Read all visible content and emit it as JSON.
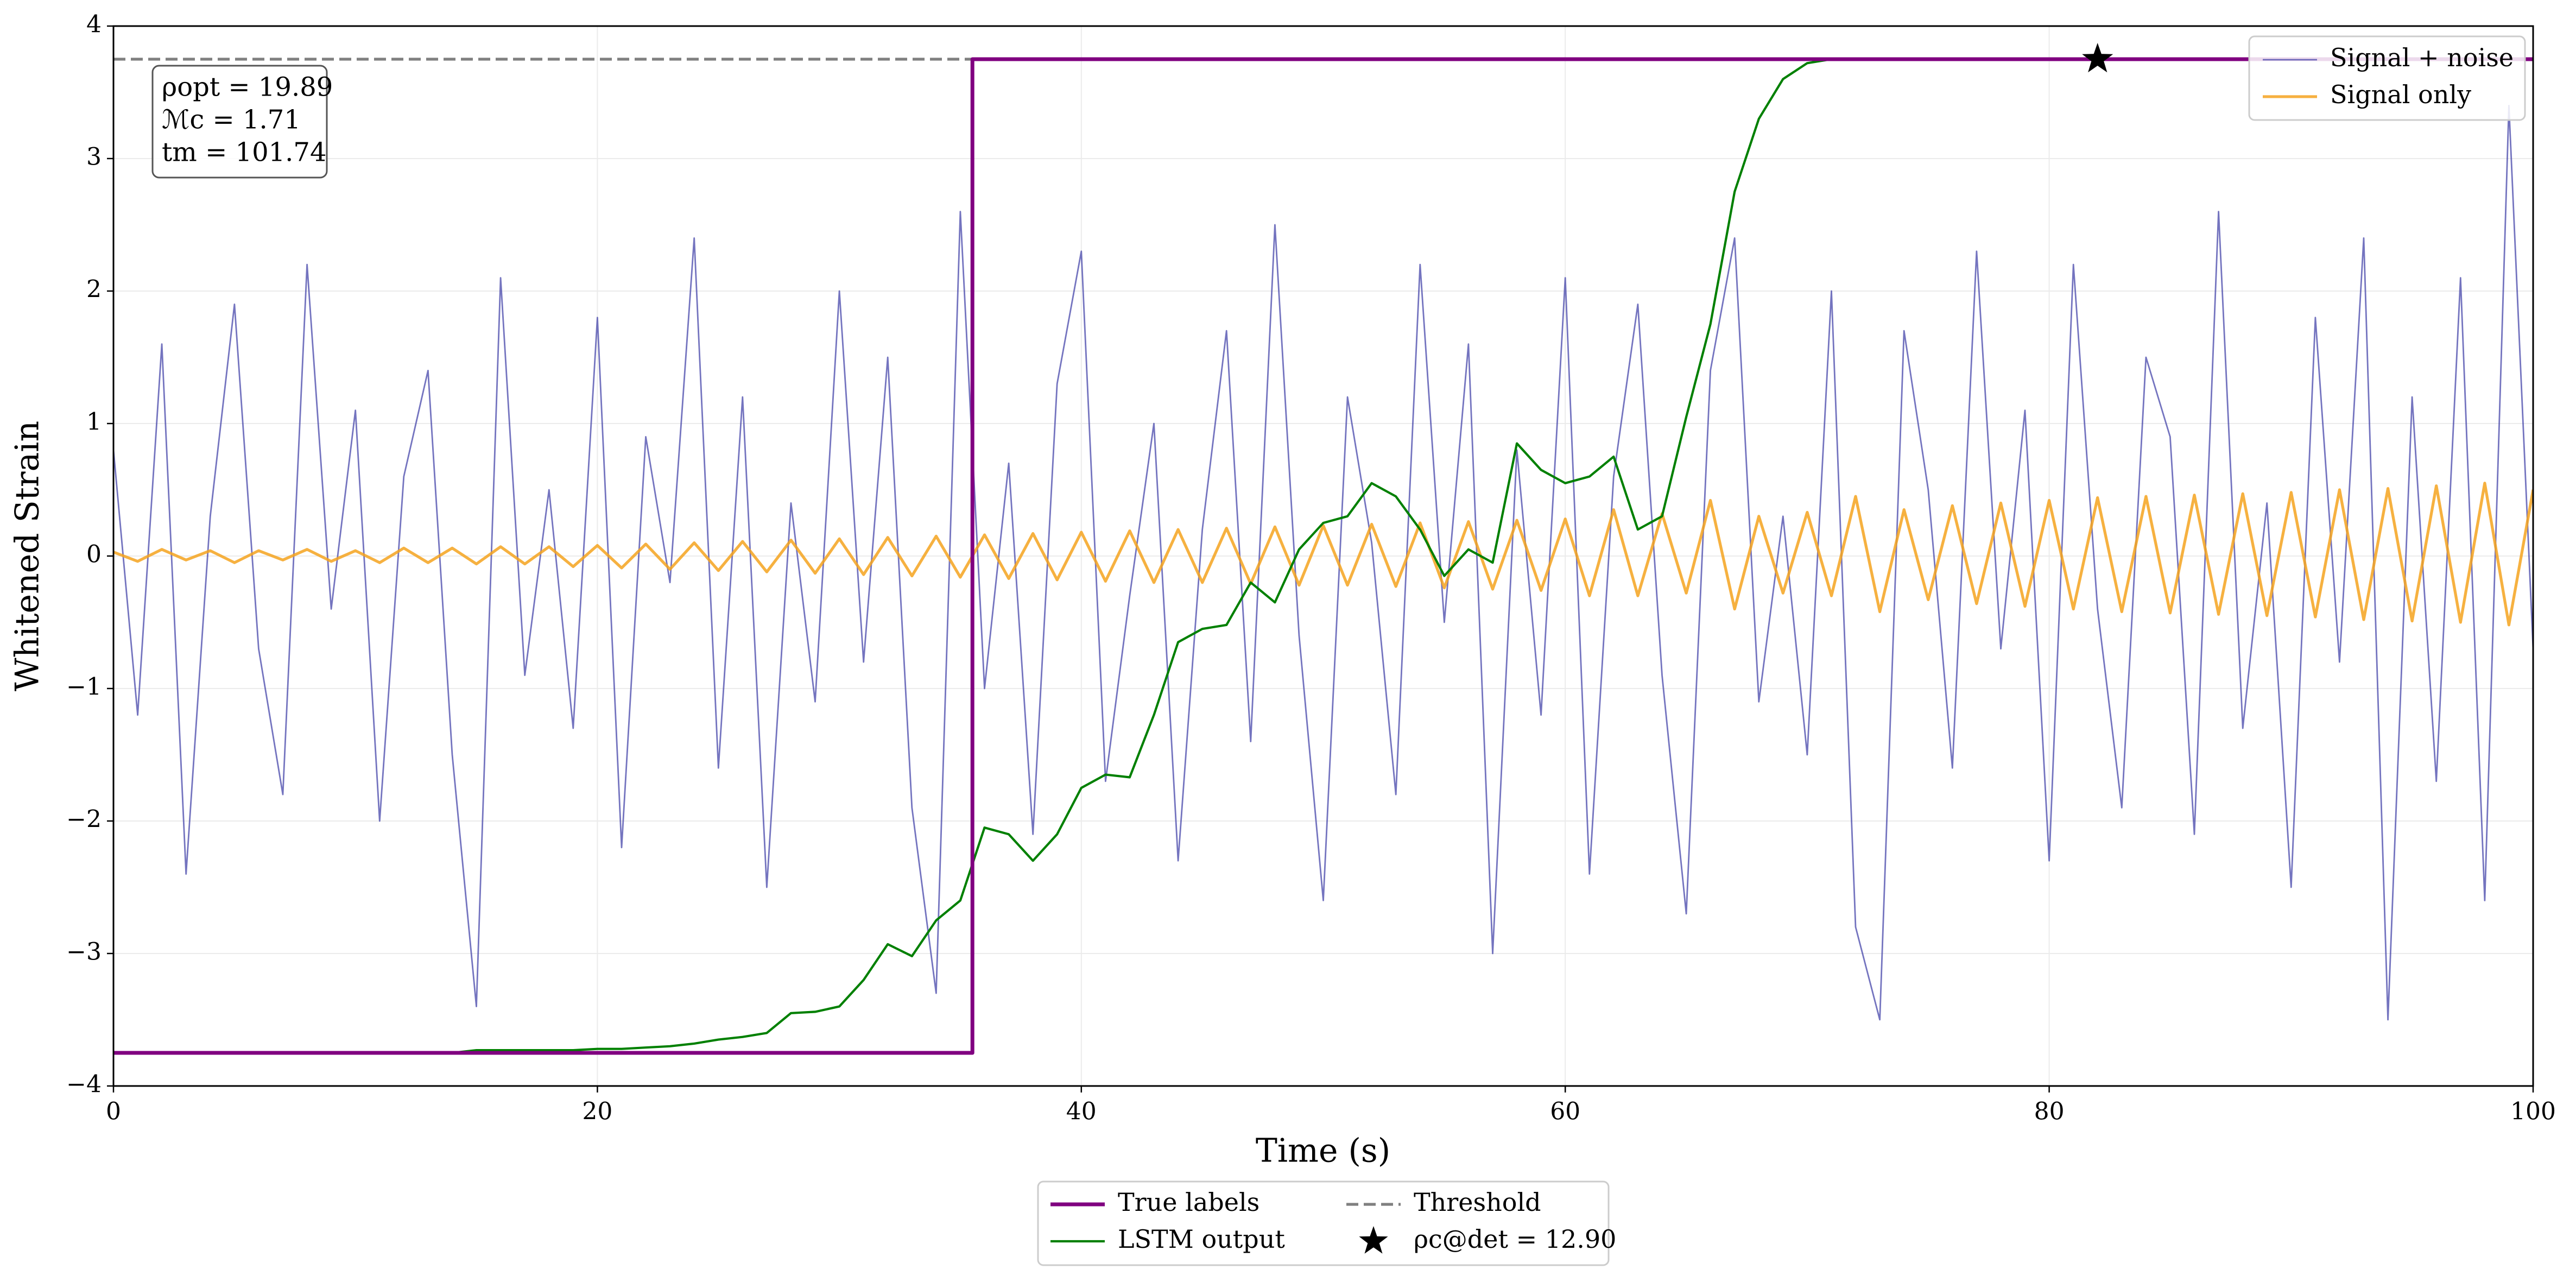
{
  "chart_data": {
    "type": "line",
    "xlabel": "Time (s)",
    "ylabel": "Whitened Strain",
    "xlim": [
      0,
      100
    ],
    "ylim": [
      -4,
      4
    ],
    "xticks": [
      0,
      20,
      40,
      60,
      80,
      100
    ],
    "yticks": [
      {
        "value": -4,
        "label": "−4"
      },
      {
        "value": -3,
        "label": "−3"
      },
      {
        "value": -2,
        "label": "−2"
      },
      {
        "value": -1,
        "label": "−1"
      },
      0,
      1,
      2,
      3,
      4
    ],
    "grid": true,
    "annotation": [
      "ρopt = 19.89",
      "ℳc = 1.71",
      "tm = 101.74"
    ],
    "series": [
      {
        "name": "Signal + noise",
        "color": "#4646aa",
        "linewidth": 0.8,
        "legend": "upper right",
        "x": [
          0,
          1,
          2,
          3,
          4,
          5,
          6,
          7,
          8,
          9,
          10,
          11,
          12,
          13,
          14,
          15,
          16,
          17,
          18,
          19,
          20,
          21,
          22,
          23,
          24,
          25,
          26,
          27,
          28,
          29,
          30,
          31,
          32,
          33,
          34,
          35,
          36,
          37,
          38,
          39,
          40,
          41,
          42,
          43,
          44,
          45,
          46,
          47,
          48,
          49,
          50,
          51,
          52,
          53,
          54,
          55,
          56,
          57,
          58,
          59,
          60,
          61,
          62,
          63,
          64,
          65,
          66,
          67,
          68,
          69,
          70,
          71,
          72,
          73,
          74,
          75,
          76,
          77,
          78,
          79,
          80,
          81,
          82,
          83,
          84,
          85,
          86,
          87,
          88,
          89,
          90,
          91,
          92,
          93,
          94,
          95,
          96,
          97,
          98,
          99,
          100
        ],
        "values": [
          0.8,
          -1.2,
          1.6,
          -2.4,
          0.3,
          1.9,
          -0.7,
          -1.8,
          2.2,
          -0.4,
          1.1,
          -2.0,
          0.6,
          1.4,
          -1.5,
          -3.4,
          2.1,
          -0.9,
          0.5,
          -1.3,
          1.8,
          -2.2,
          0.9,
          -0.2,
          2.4,
          -1.6,
          1.2,
          -2.5,
          0.4,
          -1.1,
          2.0,
          -0.8,
          1.5,
          -1.9,
          -3.3,
          2.6,
          -1.0,
          0.7,
          -2.1,
          1.3,
          2.3,
          -1.7,
          -0.3,
          1.0,
          -2.3,
          0.2,
          1.7,
          -1.4,
          2.5,
          -0.6,
          -2.6,
          1.2,
          0.1,
          -1.8,
          2.2,
          -0.5,
          1.6,
          -3.0,
          0.8,
          -1.2,
          2.1,
          -2.4,
          0.6,
          1.9,
          -0.9,
          -2.7,
          1.4,
          2.4,
          -1.1,
          0.3,
          -1.5,
          2.0,
          -2.8,
          -3.5,
          1.7,
          0.5,
          -1.6,
          2.3,
          -0.7,
          1.1,
          -2.3,
          2.2,
          -0.4,
          -1.9,
          1.5,
          0.9,
          -2.1,
          2.6,
          -1.3,
          0.4,
          -2.5,
          1.8,
          -0.8,
          2.4,
          -3.5,
          1.2,
          -1.7,
          2.1,
          -2.6,
          3.4,
          -0.7
        ]
      },
      {
        "name": "Signal only",
        "color": "#f5a31f",
        "linewidth": 1.5,
        "legend": "upper right",
        "x": [
          0,
          1,
          2,
          3,
          4,
          5,
          6,
          7,
          8,
          9,
          10,
          11,
          12,
          13,
          14,
          15,
          16,
          17,
          18,
          19,
          20,
          21,
          22,
          23,
          24,
          25,
          26,
          27,
          28,
          29,
          30,
          31,
          32,
          33,
          34,
          35,
          36,
          37,
          38,
          39,
          40,
          41,
          42,
          43,
          44,
          45,
          46,
          47,
          48,
          49,
          50,
          51,
          52,
          53,
          54,
          55,
          56,
          57,
          58,
          59,
          60,
          61,
          62,
          63,
          64,
          65,
          66,
          67,
          68,
          69,
          70,
          71,
          72,
          73,
          74,
          75,
          76,
          77,
          78,
          79,
          80,
          81,
          82,
          83,
          84,
          85,
          86,
          87,
          88,
          89,
          90,
          91,
          92,
          93,
          94,
          95,
          96,
          97,
          98,
          99,
          100
        ],
        "values": [
          0.03,
          -0.04,
          0.05,
          -0.03,
          0.04,
          -0.05,
          0.04,
          -0.03,
          0.05,
          -0.04,
          0.04,
          -0.05,
          0.06,
          -0.05,
          0.06,
          -0.06,
          0.07,
          -0.06,
          0.07,
          -0.08,
          0.08,
          -0.09,
          0.09,
          -0.1,
          0.1,
          -0.11,
          0.11,
          -0.12,
          0.12,
          -0.13,
          0.13,
          -0.14,
          0.14,
          -0.15,
          0.15,
          -0.16,
          0.16,
          -0.17,
          0.17,
          -0.18,
          0.18,
          -0.19,
          0.19,
          -0.2,
          0.2,
          -0.2,
          0.21,
          -0.21,
          0.22,
          -0.22,
          0.23,
          -0.22,
          0.24,
          -0.23,
          0.25,
          -0.24,
          0.26,
          -0.25,
          0.27,
          -0.26,
          0.28,
          -0.3,
          0.35,
          -0.3,
          0.32,
          -0.28,
          0.42,
          -0.4,
          0.3,
          -0.28,
          0.33,
          -0.3,
          0.45,
          -0.42,
          0.35,
          -0.33,
          0.38,
          -0.36,
          0.4,
          -0.38,
          0.42,
          -0.4,
          0.44,
          -0.42,
          0.45,
          -0.43,
          0.46,
          -0.44,
          0.47,
          -0.45,
          0.48,
          -0.46,
          0.5,
          -0.48,
          0.51,
          -0.49,
          0.53,
          -0.5,
          0.55,
          -0.52,
          0.5
        ]
      },
      {
        "name": "True labels",
        "color": "#800080",
        "linewidth": 2,
        "legend": "lower center",
        "x": [
          0,
          35.5,
          35.5,
          100
        ],
        "values": [
          -3.75,
          -3.75,
          3.75,
          3.75
        ]
      },
      {
        "name": "LSTM output",
        "color": "#008000",
        "linewidth": 1.2,
        "legend": "lower center",
        "x": [
          0,
          1,
          2,
          3,
          4,
          5,
          6,
          7,
          8,
          9,
          10,
          11,
          12,
          13,
          14,
          15,
          16,
          17,
          18,
          19,
          20,
          21,
          22,
          23,
          24,
          25,
          26,
          27,
          28,
          29,
          30,
          31,
          32,
          33,
          34,
          35,
          36,
          37,
          38,
          39,
          40,
          41,
          42,
          43,
          44,
          45,
          46,
          47,
          48,
          49,
          50,
          51,
          52,
          53,
          54,
          55,
          56,
          57,
          58,
          59,
          60,
          61,
          62,
          63,
          64,
          65,
          66,
          67,
          68,
          69,
          70,
          71,
          72,
          73,
          74,
          75,
          76,
          77,
          78,
          79,
          80,
          81,
          82,
          83,
          84,
          85,
          86,
          87,
          88,
          89,
          90,
          91,
          92,
          93,
          94,
          95,
          96,
          97,
          98,
          99,
          100
        ],
        "values": [
          -3.75,
          -3.75,
          -3.75,
          -3.75,
          -3.75,
          -3.75,
          -3.75,
          -3.75,
          -3.75,
          -3.75,
          -3.75,
          -3.75,
          -3.75,
          -3.75,
          -3.75,
          -3.73,
          -3.73,
          -3.73,
          -3.73,
          -3.73,
          -3.72,
          -3.72,
          -3.71,
          -3.7,
          -3.68,
          -3.65,
          -3.63,
          -3.6,
          -3.45,
          -3.44,
          -3.4,
          -3.2,
          -2.93,
          -3.02,
          -2.75,
          -2.6,
          -2.05,
          -2.1,
          -2.3,
          -2.1,
          -1.75,
          -1.65,
          -1.67,
          -1.2,
          -0.65,
          -0.55,
          -0.52,
          -0.2,
          -0.35,
          0.05,
          0.25,
          0.3,
          0.55,
          0.45,
          0.2,
          -0.15,
          0.05,
          -0.05,
          0.85,
          0.65,
          0.55,
          0.6,
          0.75,
          0.2,
          0.3,
          1.05,
          1.75,
          2.75,
          3.3,
          3.6,
          3.72,
          3.75,
          3.75,
          3.75,
          3.75,
          3.75,
          3.75,
          3.75,
          3.75,
          3.75,
          3.75,
          3.75,
          3.75,
          3.75,
          3.75,
          3.75,
          3.75,
          3.75,
          3.75,
          3.75,
          3.75,
          3.75,
          3.75,
          3.75,
          3.75,
          3.75,
          3.75,
          3.75,
          3.75,
          3.75,
          3.75
        ]
      },
      {
        "name": "Threshold",
        "color": "#808080",
        "linewidth": 1.5,
        "dashed": true,
        "legend": "lower center",
        "x": [
          0,
          100
        ],
        "values": [
          3.75,
          3.75
        ]
      }
    ],
    "marker": {
      "label": "ρc@det = 12.90",
      "x": 82,
      "y": 3.75,
      "color": "#000000",
      "legend": "lower center"
    }
  }
}
